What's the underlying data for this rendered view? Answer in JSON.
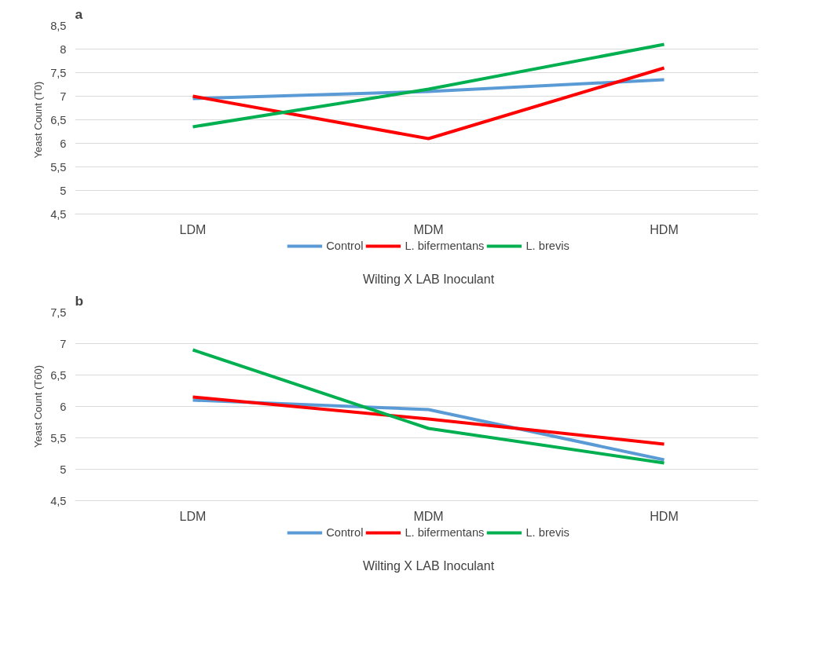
{
  "chart_data": [
    {
      "type": "line",
      "title": "a",
      "xlabel": "Wilting X LAB Inoculant",
      "ylabel": "Yeast Count (T0)",
      "categories": [
        "LDM",
        "MDM",
        "HDM"
      ],
      "series": [
        {
          "name": "Control",
          "color": "#5b9bd5",
          "values": [
            6.95,
            7.1,
            7.35
          ]
        },
        {
          "name": "L. bifermentans",
          "color": "#ff0000",
          "values": [
            7.0,
            6.1,
            7.6
          ]
        },
        {
          "name": "L. brevis",
          "color": "#00b050",
          "values": [
            6.35,
            7.15,
            8.1
          ]
        }
      ],
      "ylim": [
        4.5,
        8.5
      ],
      "yticks": [
        {
          "value": 4.5,
          "label": "4,5"
        },
        {
          "value": 5,
          "label": "5"
        },
        {
          "value": 5.5,
          "label": "5,5"
        },
        {
          "value": 6,
          "label": "6"
        },
        {
          "value": 6.5,
          "label": "6,5"
        },
        {
          "value": 7,
          "label": "7"
        },
        {
          "value": 7.5,
          "label": "7,5"
        },
        {
          "value": 8,
          "label": "8"
        },
        {
          "value": 8.5,
          "label": "8,5"
        }
      ],
      "grid": "y",
      "legend": "bottom",
      "marker": "none",
      "line_style": "solid"
    },
    {
      "type": "line",
      "title": "b",
      "xlabel": "Wilting X LAB Inoculant",
      "ylabel": "Yeast Count (T60)",
      "categories": [
        "LDM",
        "MDM",
        "HDM"
      ],
      "series": [
        {
          "name": "Control",
          "color": "#5b9bd5",
          "values": [
            6.1,
            5.95,
            5.15
          ]
        },
        {
          "name": "L. bifermentans",
          "color": "#ff0000",
          "values": [
            6.15,
            5.8,
            5.4
          ]
        },
        {
          "name": "L. brevis",
          "color": "#00b050",
          "values": [
            6.9,
            5.65,
            5.1
          ]
        }
      ],
      "ylim": [
        4.5,
        7.5
      ],
      "yticks": [
        {
          "value": 4.5,
          "label": "4,5"
        },
        {
          "value": 5,
          "label": "5"
        },
        {
          "value": 5.5,
          "label": "5,5"
        },
        {
          "value": 6,
          "label": "6"
        },
        {
          "value": 6.5,
          "label": "6,5"
        },
        {
          "value": 7,
          "label": "7"
        },
        {
          "value": 7.5,
          "label": "7,5"
        }
      ],
      "grid": "y",
      "legend": "bottom",
      "marker": "none",
      "line_style": "solid"
    }
  ]
}
